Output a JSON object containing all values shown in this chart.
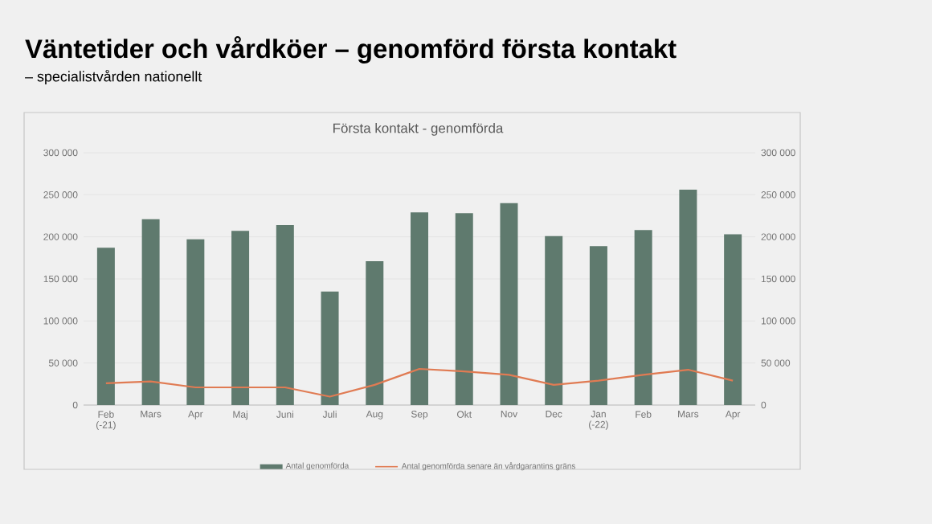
{
  "chart_data": {
    "type": "bar",
    "title": "Väntetider och vårdköer – genomförd första kontakt",
    "subtitle": "– specialistvården nationellt",
    "annotations": [
      "Första kontakt - genomförda"
    ],
    "categories": [
      "Feb (-21)",
      "Mars",
      "Apr",
      "Maj",
      "Juni",
      "Juli",
      "Aug",
      "Sep",
      "Okt",
      "Nov",
      "Dec",
      "Jan (-22)",
      "Feb",
      "Mars",
      "Apr"
    ],
    "series": [
      {
        "name": "Antal genomförda",
        "color": "#5f7a6e",
        "values": [
          187000,
          221000,
          197000,
          207000,
          214000,
          135000,
          171000,
          229000,
          228000,
          240000,
          201000,
          189000,
          208000,
          256000,
          203000
        ]
      },
      {
        "name": "Antal genomförda senare än vårdgarantins gräns",
        "type": "line",
        "color": "#e07b53",
        "values": [
          26000,
          28000,
          21000,
          21000,
          21000,
          10000,
          24000,
          43000,
          40000,
          36000,
          24000,
          29000,
          36000,
          42000,
          29000
        ]
      }
    ],
    "ylim": [
      0,
      300000
    ],
    "yticks": [
      {
        "value": 0,
        "label": "0"
      },
      {
        "value": 50000,
        "label": "50 000"
      },
      {
        "value": 100000,
        "label": "100 000"
      },
      {
        "value": 150000,
        "label": "150 000"
      },
      {
        "value": 200000,
        "label": "200 000"
      },
      {
        "value": 250000,
        "label": "250 000"
      },
      {
        "value": 300000,
        "label": "300 000"
      }
    ],
    "y2lim": [
      0,
      300000
    ],
    "y2ticks": [
      {
        "value": 0,
        "label": "0"
      },
      {
        "value": 50000,
        "label": "50 000"
      },
      {
        "value": 100000,
        "label": "100 000"
      },
      {
        "value": 150000,
        "label": "150 000"
      },
      {
        "value": 200000,
        "label": "200 000"
      },
      {
        "value": 250000,
        "label": "250 000"
      },
      {
        "value": 300000,
        "label": "300 000"
      }
    ],
    "grid": "y",
    "legend": "bottom",
    "marker": "none"
  }
}
